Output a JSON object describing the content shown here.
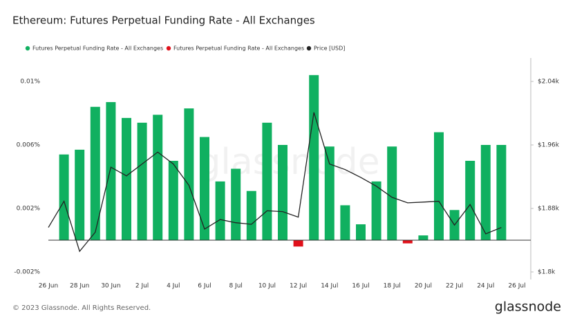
{
  "chart_data": {
    "type": "bar-line",
    "title": "Ethereum: Futures Perpetual Funding Rate - All Exchanges",
    "watermark": "glassnode",
    "categories": [
      "26 Jun",
      null,
      "28 Jun",
      null,
      "30 Jun",
      null,
      "2 Jul",
      null,
      "4 Jul",
      null,
      "6 Jul",
      null,
      "8 Jul",
      null,
      "10 Jul",
      null,
      "12 Jul",
      null,
      "14 Jul",
      null,
      "16 Jul",
      null,
      "18 Jul",
      null,
      "20 Jul",
      null,
      "22 Jul",
      null,
      "24 Jul",
      null,
      "26 Jul"
    ],
    "series": [
      {
        "name": "Futures Perpetual Funding Rate - All Exchanges",
        "color": "#10b060",
        "values": [
          null,
          0.0054,
          0.0057,
          0.0084,
          0.0087,
          0.0077,
          0.0074,
          0.0079,
          0.005,
          0.0083,
          0.0065,
          0.0037,
          0.0045,
          0.0031,
          0.0074,
          0.006,
          null,
          0.0104,
          0.0059,
          0.0022,
          0.001,
          0.0037,
          0.0059,
          null,
          0.0003,
          0.0068,
          0.0019,
          0.005,
          0.006,
          0.006,
          null
        ]
      },
      {
        "name": "Futures Perpetual Funding Rate - All Exchanges",
        "color": "#e0101a",
        "values": [
          null,
          null,
          null,
          null,
          null,
          null,
          null,
          null,
          null,
          null,
          null,
          null,
          null,
          null,
          null,
          null,
          -0.0004,
          null,
          null,
          null,
          null,
          null,
          null,
          -0.0002,
          null,
          null,
          null,
          null,
          null,
          null,
          null
        ]
      },
      {
        "name": "Price [USD]",
        "color": "#222222",
        "axis": "y2",
        "values": [
          1856,
          1889,
          1826,
          1850,
          1932,
          1921,
          1936,
          1951,
          1936,
          1909,
          1854,
          1866,
          1862,
          1860,
          1877,
          1876,
          1869,
          2001,
          1936,
          1929,
          1919,
          1908,
          1894,
          1887,
          1888,
          1889,
          1859,
          1885,
          1848,
          1856,
          null
        ]
      }
    ],
    "ylim": [
      -0.0025,
      0.0115
    ],
    "yticks": [
      {
        "value": -0.002,
        "label": "-0.002%"
      },
      {
        "value": 0.002,
        "label": "0.002%"
      },
      {
        "value": 0.006,
        "label": "0.006%"
      },
      {
        "value": 0.01,
        "label": "0.01%"
      }
    ],
    "y2lim": [
      1790,
      2070
    ],
    "y2ticks": [
      {
        "value": 1800,
        "label": "$1.8k"
      },
      {
        "value": 1880,
        "label": "$1.88k"
      },
      {
        "value": 1960,
        "label": "$1.96k"
      },
      {
        "value": 2040,
        "label": "$2.04k"
      }
    ],
    "grid": false
  },
  "footer": {
    "copyright": "© 2023 Glassnode. All Rights Reserved.",
    "logo": "glassnode"
  }
}
